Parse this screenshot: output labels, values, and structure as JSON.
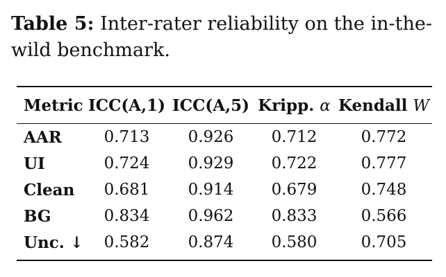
{
  "caption": {
    "label": "Table 5:",
    "text": "Inter-rater reliability on the in-the-wild benchmark."
  },
  "table": {
    "headers": {
      "metric": "Metric",
      "icc_a1": "ICC(A,1)",
      "icc_a5": "ICC(A,5)",
      "kripp_label": "Kripp.",
      "kripp_symbol": "α",
      "kendall_label": "Kendall",
      "kendall_symbol": "W"
    },
    "rows": [
      {
        "metric": "AAR",
        "icc_a1": "0.713",
        "icc_a5": "0.926",
        "kripp": "0.712",
        "kendall": "0.772"
      },
      {
        "metric": "UI",
        "icc_a1": "0.724",
        "icc_a5": "0.929",
        "kripp": "0.722",
        "kendall": "0.777"
      },
      {
        "metric": "Clean",
        "icc_a1": "0.681",
        "icc_a5": "0.914",
        "kripp": "0.679",
        "kendall": "0.748"
      },
      {
        "metric": "BG",
        "icc_a1": "0.834",
        "icc_a5": "0.962",
        "kripp": "0.833",
        "kendall": "0.566"
      },
      {
        "metric": "Unc. ↓",
        "icc_a1": "0.582",
        "icc_a5": "0.874",
        "kripp": "0.580",
        "kendall": "0.705"
      }
    ]
  }
}
